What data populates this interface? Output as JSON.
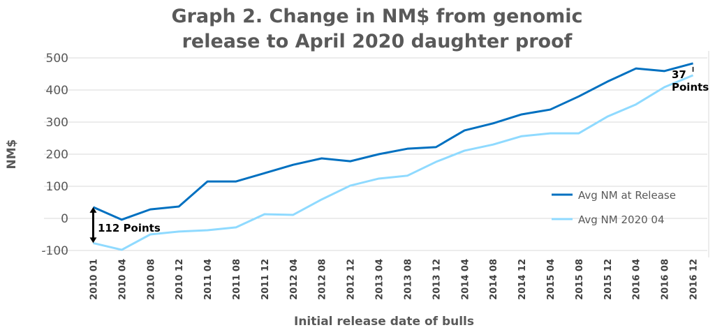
{
  "chart_data": {
    "type": "line",
    "title": [
      "Graph 2. Change in NM$ from genomic",
      "release to April 2020 daughter proof"
    ],
    "xlabel": "Initial release date of bulls",
    "ylabel": "NM$",
    "ylim": [
      -100,
      500
    ],
    "yticks": [
      -100,
      0,
      100,
      200,
      300,
      400,
      500
    ],
    "grid": true,
    "legend_position": "bottom-right",
    "categories": [
      "2010 01",
      "2010 04",
      "2010 08",
      "2010 12",
      "2011 04",
      "2011 08",
      "2011 12",
      "2012 04",
      "2012 08",
      "2012 12",
      "2013 04",
      "2013 08",
      "2013 12",
      "2014 04",
      "2014 08",
      "2014 12",
      "2015 04",
      "2015 08",
      "2015 12",
      "2016 04",
      "2016 08",
      "2016 12"
    ],
    "series": [
      {
        "name": "Avg NM at Release",
        "color": "#0070C0",
        "values": [
          35,
          -4,
          28,
          37,
          115,
          115,
          141,
          167,
          187,
          178,
          200,
          217,
          222,
          274,
          296,
          324,
          339,
          380,
          426,
          467,
          459,
          483
        ]
      },
      {
        "name": "Avg NM 2020 04",
        "color": "#8FDAFF",
        "values": [
          -77,
          -98,
          -50,
          -41,
          -37,
          -28,
          13,
          11,
          59,
          102,
          124,
          133,
          176,
          211,
          230,
          256,
          265,
          265,
          317,
          355,
          409,
          446
        ]
      }
    ],
    "annotations": [
      {
        "text": "112 Points",
        "category": "2010 01"
      },
      {
        "text": "37",
        "text2": "Points",
        "category": "2016 12"
      }
    ]
  }
}
